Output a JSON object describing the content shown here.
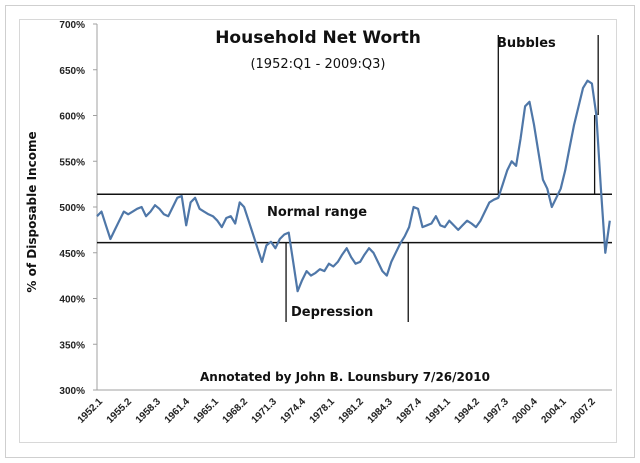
{
  "chart_data": {
    "type": "line",
    "title": "Household Net Worth",
    "subtitle": "(1952:Q1 - 2009:Q3)",
    "xlabel": "",
    "ylabel": "% of Disposable Income",
    "ylim": [
      300,
      700
    ],
    "y_ticks": [
      "300%",
      "350%",
      "400%",
      "450%",
      "500%",
      "550%",
      "600%",
      "650%",
      "700%"
    ],
    "y_tick_values": [
      300,
      350,
      400,
      450,
      500,
      550,
      600,
      650,
      700
    ],
    "x_ticks": [
      "1952.1",
      "1955.2",
      "1958.3",
      "1961.4",
      "1965.1",
      "1968.2",
      "1971.3",
      "1974.4",
      "1978.1",
      "1981.2",
      "1984.3",
      "1987.4",
      "1991.1",
      "1994.2",
      "1997.3",
      "2000.4",
      "2004.1",
      "2007.2"
    ],
    "grid": false,
    "legend": "none",
    "series": [
      {
        "name": "Household Net Worth (% of Disposable Income)",
        "color": "#4f77a8",
        "x": [
          1952.0,
          1952.5,
          1953.0,
          1953.5,
          1954.0,
          1954.5,
          1955.0,
          1955.5,
          1956.0,
          1956.5,
          1957.0,
          1957.5,
          1958.0,
          1958.5,
          1959.0,
          1959.5,
          1960.0,
          1960.5,
          1961.0,
          1961.5,
          1962.0,
          1962.5,
          1963.0,
          1963.5,
          1964.0,
          1964.5,
          1965.0,
          1965.5,
          1966.0,
          1966.5,
          1967.0,
          1967.5,
          1968.0,
          1968.5,
          1969.0,
          1969.5,
          1970.0,
          1970.5,
          1971.0,
          1971.5,
          1972.0,
          1972.5,
          1973.0,
          1973.5,
          1974.0,
          1974.5,
          1975.0,
          1975.5,
          1976.0,
          1976.5,
          1977.0,
          1977.5,
          1978.0,
          1978.5,
          1979.0,
          1979.5,
          1980.0,
          1980.5,
          1981.0,
          1981.5,
          1982.0,
          1982.5,
          1983.0,
          1983.5,
          1984.0,
          1984.5,
          1985.0,
          1985.5,
          1986.0,
          1986.5,
          1987.0,
          1987.5,
          1988.0,
          1988.5,
          1989.0,
          1989.5,
          1990.0,
          1990.5,
          1991.0,
          1991.5,
          1992.0,
          1992.5,
          1993.0,
          1993.5,
          1994.0,
          1994.5,
          1995.0,
          1995.5,
          1996.0,
          1996.5,
          1997.0,
          1997.5,
          1998.0,
          1998.5,
          1999.0,
          1999.5,
          2000.0,
          2000.5,
          2001.0,
          2001.5,
          2002.0,
          2002.5,
          2003.0,
          2003.5,
          2004.0,
          2004.5,
          2005.0,
          2005.5,
          2006.0,
          2006.5,
          2007.0,
          2007.5,
          2008.0,
          2008.5,
          2009.0,
          2009.5
        ],
        "values": [
          490,
          495,
          480,
          465,
          475,
          485,
          495,
          492,
          495,
          498,
          500,
          490,
          495,
          502,
          498,
          492,
          490,
          500,
          510,
          512,
          480,
          505,
          510,
          498,
          495,
          492,
          490,
          485,
          478,
          488,
          490,
          482,
          505,
          500,
          485,
          470,
          455,
          440,
          458,
          462,
          455,
          465,
          470,
          472,
          440,
          408,
          420,
          430,
          425,
          428,
          432,
          430,
          438,
          435,
          440,
          448,
          455,
          445,
          438,
          440,
          448,
          455,
          450,
          440,
          430,
          425,
          440,
          450,
          460,
          468,
          478,
          500,
          498,
          478,
          480,
          482,
          490,
          480,
          478,
          485,
          480,
          475,
          480,
          485,
          482,
          478,
          485,
          495,
          505,
          508,
          510,
          525,
          540,
          550,
          545,
          575,
          610,
          615,
          590,
          560,
          530,
          520,
          500,
          510,
          520,
          540,
          565,
          590,
          610,
          630,
          638,
          635,
          600,
          520,
          450,
          485
        ]
      }
    ],
    "reference_lines": [
      {
        "type": "horizontal",
        "value": 514,
        "label": "Normal range"
      },
      {
        "type": "horizontal",
        "value": 461,
        "label": ""
      }
    ],
    "annotations": [
      {
        "text": "Normal range",
        "near_value": 500
      },
      {
        "text": "Depression",
        "x_range": [
          1973.2,
          1986.9
        ]
      },
      {
        "text": "Bubbles",
        "x_range": [
          1997.0,
          2007.8
        ]
      },
      {
        "text": "Annotated by John B. Lounsbury 7/26/2010"
      }
    ]
  }
}
